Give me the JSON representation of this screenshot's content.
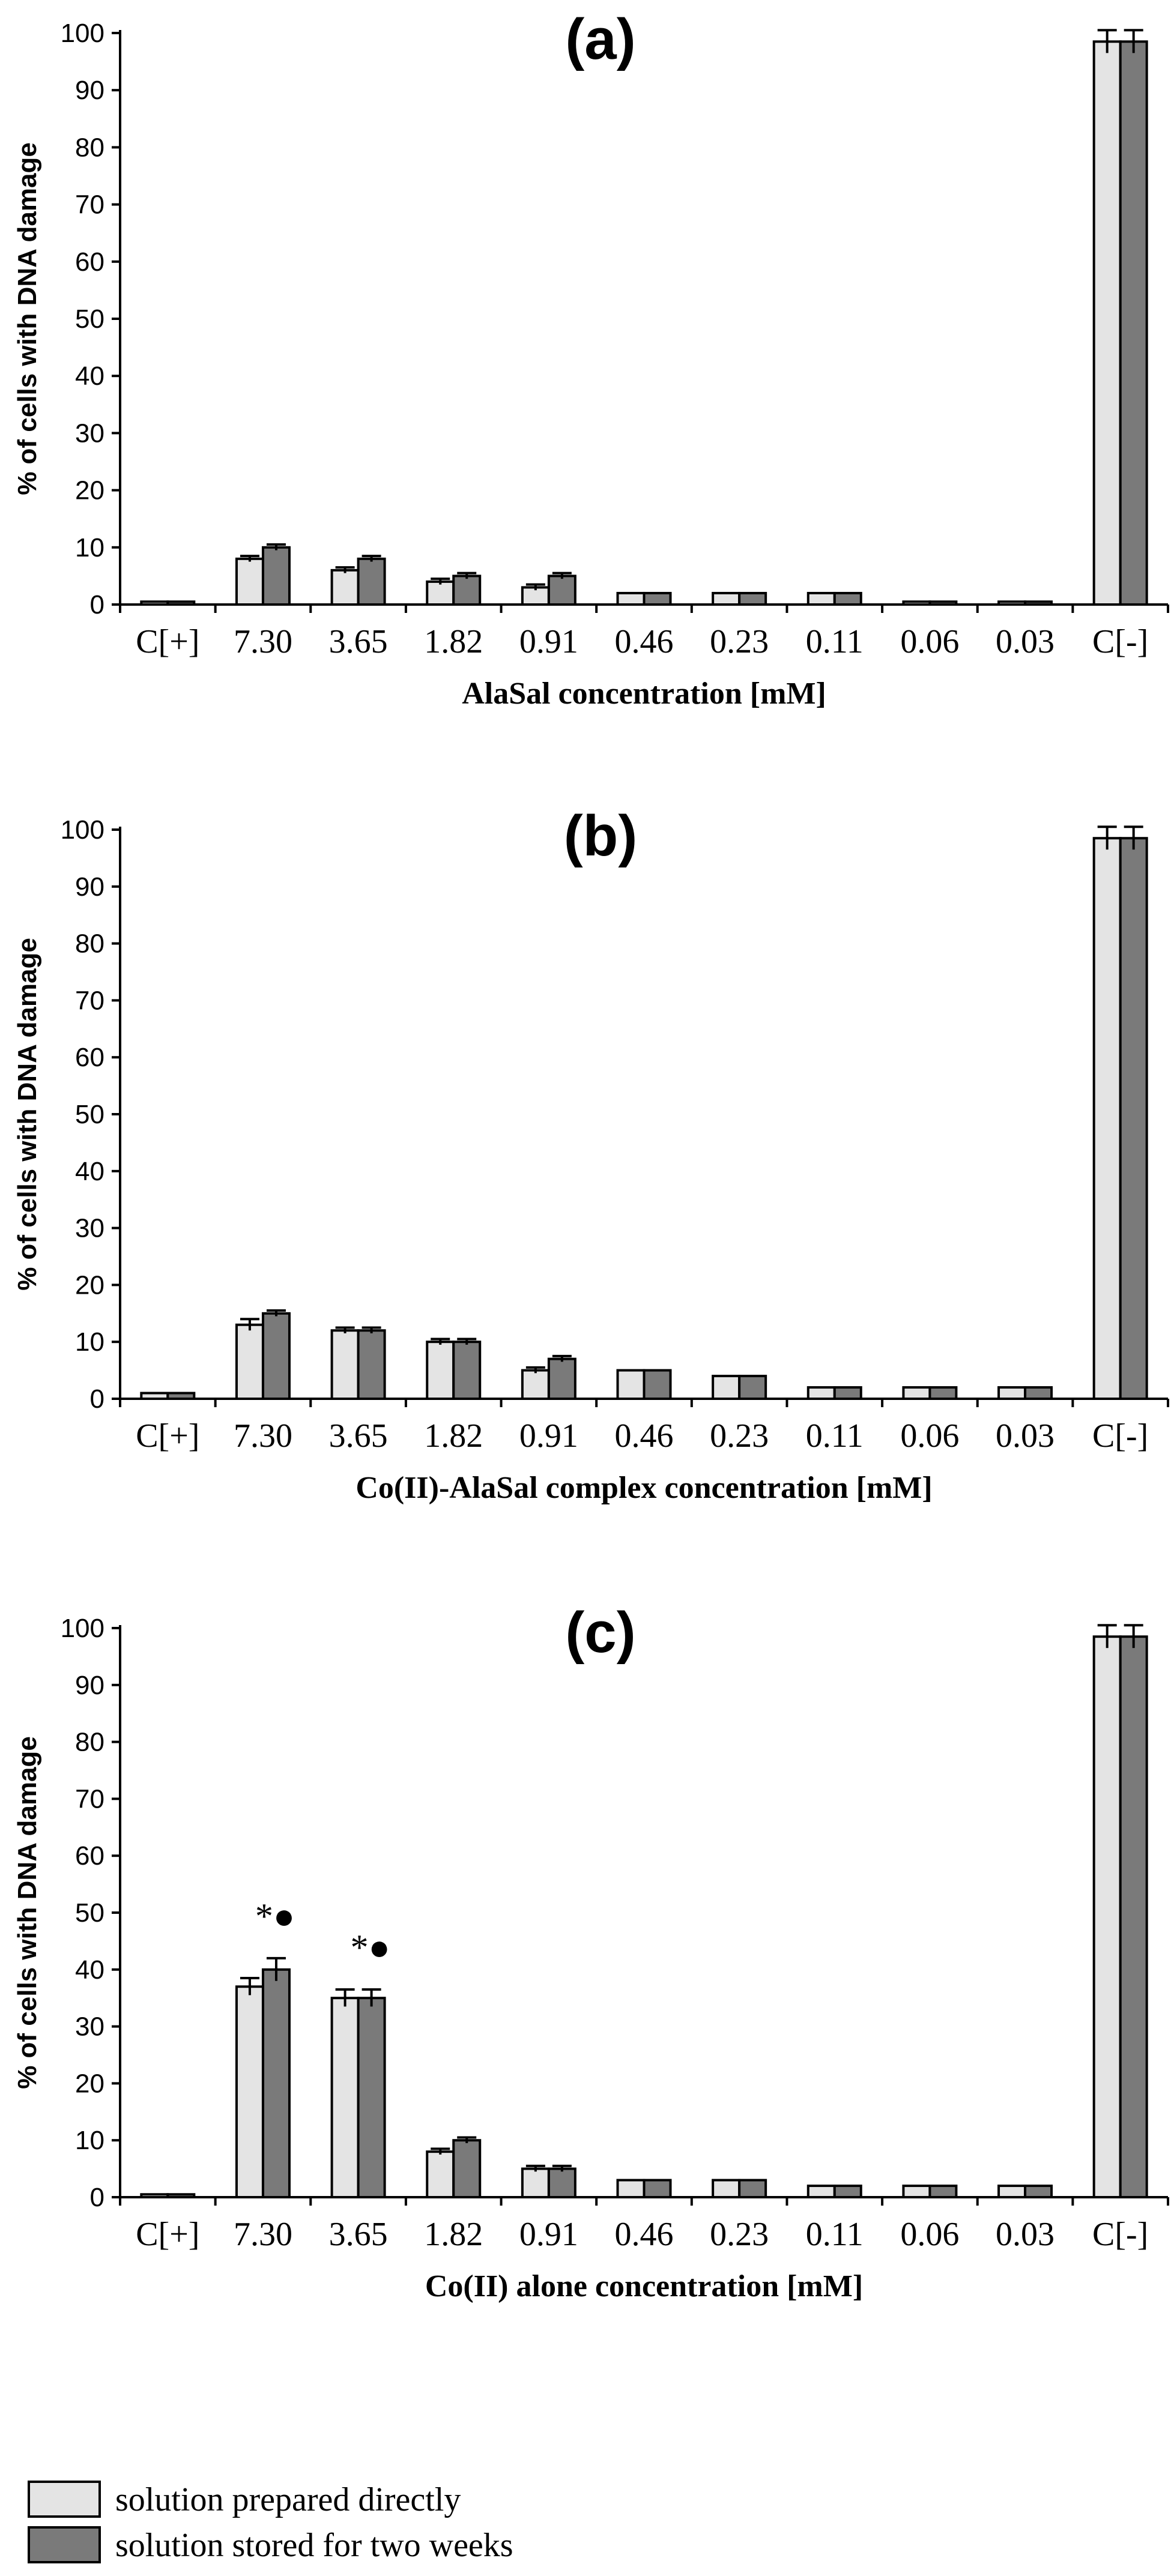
{
  "chart_data": [
    {
      "type": "bar",
      "title": "(a)",
      "ylabel": "% of cells with DNA damage",
      "xlabel": "AlaSal   concentration  [mM]",
      "ylim": [
        0,
        100
      ],
      "yticks": [
        0,
        10,
        20,
        30,
        40,
        50,
        60,
        70,
        80,
        90,
        100
      ],
      "categories": [
        "C[+]",
        "7.30",
        "3.65",
        "1.82",
        "0.91",
        "0.46",
        "0.23",
        "0.11",
        "0.06",
        "0.03",
        "C[-]"
      ],
      "series": [
        {
          "name": "solution prepared directly",
          "values": [
            0.5,
            8,
            6,
            4,
            3,
            2,
            2,
            2,
            0.5,
            0.5,
            98.5
          ],
          "errors": [
            0,
            0.5,
            0.5,
            0.5,
            0.5,
            0,
            0,
            0,
            0,
            0,
            2
          ]
        },
        {
          "name": "solution stored for two weeks",
          "values": [
            0.5,
            10,
            8,
            5,
            5,
            2,
            2,
            2,
            0.5,
            0.5,
            98.5
          ],
          "errors": [
            0,
            0.5,
            0.5,
            0.5,
            0.5,
            0,
            0,
            0,
            0,
            0,
            2
          ]
        }
      ],
      "annotations": []
    },
    {
      "type": "bar",
      "title": "(b)",
      "ylabel": "% of cells with DNA damage",
      "xlabel": "Co(II)-AlaSal complex    concentration  [mM]",
      "ylim": [
        0,
        100
      ],
      "yticks": [
        0,
        10,
        20,
        30,
        40,
        50,
        60,
        70,
        80,
        90,
        100
      ],
      "categories": [
        "C[+]",
        "7.30",
        "3.65",
        "1.82",
        "0.91",
        "0.46",
        "0.23",
        "0.11",
        "0.06",
        "0.03",
        "C[-]"
      ],
      "series": [
        {
          "name": "solution prepared directly",
          "values": [
            1,
            13,
            12,
            10,
            5,
            5,
            4,
            2,
            2,
            2,
            98.5
          ],
          "errors": [
            0,
            1,
            0.5,
            0.5,
            0.5,
            0,
            0,
            0,
            0,
            0,
            2
          ]
        },
        {
          "name": "solution stored for two weeks",
          "values": [
            1,
            15,
            12,
            10,
            7,
            5,
            4,
            2,
            2,
            2,
            98.5
          ],
          "errors": [
            0,
            0.5,
            0.5,
            0.5,
            0.5,
            0,
            0,
            0,
            0,
            0,
            2
          ]
        }
      ],
      "annotations": []
    },
    {
      "type": "bar",
      "title": "(c)",
      "ylabel": "% of cells with DNA damage",
      "xlabel": "Co(II)  alone    concentration  [mM]",
      "ylim": [
        0,
        100
      ],
      "yticks": [
        0,
        10,
        20,
        30,
        40,
        50,
        60,
        70,
        80,
        90,
        100
      ],
      "categories": [
        "C[+]",
        "7.30",
        "3.65",
        "1.82",
        "0.91",
        "0.46",
        "0.23",
        "0.11",
        "0.06",
        "0.03",
        "C[-]"
      ],
      "series": [
        {
          "name": "solution prepared directly",
          "values": [
            0.5,
            37,
            35,
            8,
            5,
            3,
            3,
            2,
            2,
            2,
            98.5
          ],
          "errors": [
            0,
            1.5,
            1.5,
            0.5,
            0.5,
            0,
            0,
            0,
            0,
            0,
            2
          ]
        },
        {
          "name": "solution stored for two weeks",
          "values": [
            0.5,
            40,
            35,
            10,
            5,
            3,
            3,
            2,
            2,
            2,
            98.5
          ],
          "errors": [
            0,
            2,
            1.5,
            0.5,
            0.5,
            0,
            0,
            0,
            0,
            0,
            2
          ]
        }
      ],
      "annotations": [
        {
          "category": "7.30",
          "text": "*●"
        },
        {
          "category": "3.65",
          "text": "*●"
        }
      ]
    }
  ],
  "legend": [
    {
      "label": "solution prepared directly",
      "color": "#e4e4e4"
    },
    {
      "label": "solution stored for two weeks",
      "color": "#7a7a7a"
    }
  ],
  "colors": {
    "series_0": "#e4e4e4",
    "series_1": "#7a7a7a",
    "axis": "#000000"
  }
}
